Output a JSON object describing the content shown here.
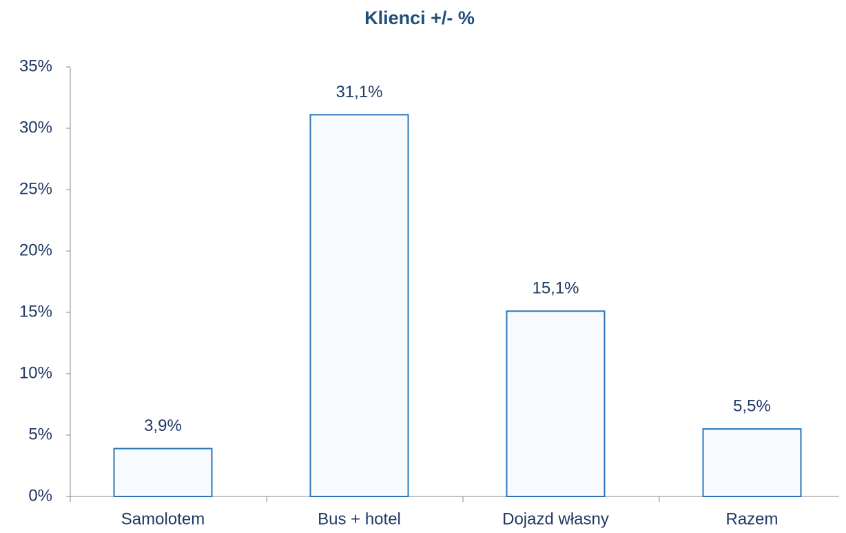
{
  "chart_data": {
    "type": "bar",
    "title": "Klienci +/- %",
    "categories": [
      "Samolotem",
      "Bus + hotel",
      "Dojazd własny",
      "Razem"
    ],
    "values": [
      3.9,
      31.1,
      15.1,
      5.5
    ],
    "value_labels": [
      "3,9%",
      "31,1%",
      "15,1%",
      "5,5%"
    ],
    "color": "#2e75b6",
    "ylim": [
      0,
      35
    ],
    "yticks": [
      {
        "value": 0,
        "label": "0%"
      },
      {
        "value": 5,
        "label": "5%"
      },
      {
        "value": 10,
        "label": "10%"
      },
      {
        "value": 15,
        "label": "15%"
      },
      {
        "value": 20,
        "label": "20%"
      },
      {
        "value": 25,
        "label": "25%"
      },
      {
        "value": 30,
        "label": "30%"
      },
      {
        "value": 35,
        "label": "35%"
      }
    ],
    "grid": false
  }
}
